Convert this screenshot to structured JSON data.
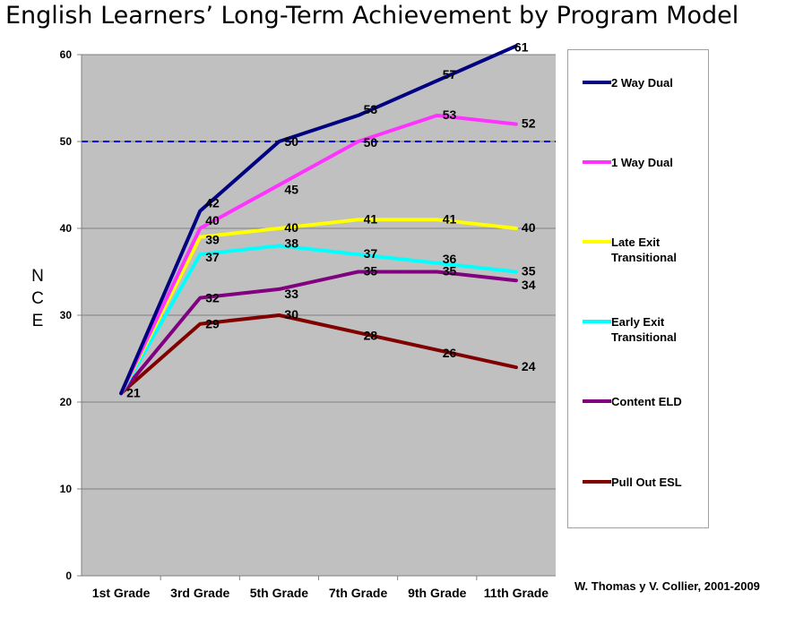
{
  "title": "English Learners’ Long-Term Achievement by Program Model",
  "y_axis_label": [
    "N",
    "C",
    "E"
  ],
  "source": "W. Thomas y V. Collier, 2001-2009",
  "chart_data": {
    "type": "line",
    "title": "English Learners’ Long-Term Achievement by Program Model",
    "ylabel": "NCE",
    "xlabel": "",
    "categories": [
      "1st Grade",
      "3rd Grade",
      "5th Grade",
      "7th Grade",
      "9th Grade",
      "11th Grade"
    ],
    "yticks": [
      0,
      10,
      20,
      30,
      40,
      50,
      60
    ],
    "ylim": [
      0,
      60
    ],
    "grid": true,
    "reference_line": {
      "value": 50,
      "color": "#0000ee",
      "style": "dashed"
    },
    "legend": "right",
    "series": [
      {
        "name": "2 Way Dual",
        "color": "#000080",
        "values": [
          21,
          42,
          50,
          53,
          57,
          61
        ]
      },
      {
        "name": "1 Way Dual",
        "color": "#ff33ff",
        "values": [
          21,
          40,
          45,
          50,
          53,
          52
        ]
      },
      {
        "name": "Late Exit Transitional",
        "color": "#ffff00",
        "values": [
          21,
          39,
          40,
          41,
          41,
          40
        ]
      },
      {
        "name": "Early Exit Transitional",
        "color": "#00ffff",
        "values": [
          21,
          37,
          38,
          37,
          36,
          35
        ]
      },
      {
        "name": "Content ELD",
        "color": "#800080",
        "values": [
          21,
          32,
          33,
          35,
          35,
          34
        ]
      },
      {
        "name": "Pull Out ESL",
        "color": "#800000",
        "values": [
          21,
          29,
          30,
          28,
          26,
          24
        ]
      }
    ],
    "label_offsets": [
      [
        null,
        [
          6,
          -4
        ],
        [
          6,
          5
        ],
        [
          6,
          -2
        ],
        [
          6,
          -2
        ],
        [
          -2,
          6
        ]
      ],
      [
        null,
        [
          6,
          -4
        ],
        [
          6,
          10
        ],
        [
          6,
          6
        ],
        [
          6,
          4
        ],
        [
          6,
          4
        ]
      ],
      [
        null,
        [
          6,
          8
        ],
        [
          6,
          4
        ],
        [
          6,
          4
        ],
        [
          6,
          4
        ],
        [
          6,
          4
        ]
      ],
      [
        null,
        [
          6,
          8
        ],
        [
          6,
          2
        ],
        [
          6,
          4
        ],
        [
          6,
          0
        ],
        [
          6,
          4
        ]
      ],
      [
        null,
        [
          6,
          5
        ],
        [
          6,
          10
        ],
        [
          6,
          4
        ],
        [
          6,
          4
        ],
        [
          6,
          10
        ]
      ],
      [
        [
          6,
          4
        ],
        [
          6,
          5
        ],
        [
          6,
          4
        ],
        [
          6,
          8
        ],
        [
          6,
          8
        ],
        [
          6,
          4
        ]
      ]
    ]
  },
  "legend_items": [
    {
      "label": "2 Way Dual",
      "color": "#000080"
    },
    {
      "label": "1 Way Dual",
      "color": "#ff33ff"
    },
    {
      "label": "Late Exit Transitional",
      "color": "#ffff00"
    },
    {
      "label": "Early Exit Transitional",
      "color": "#00ffff"
    },
    {
      "label": "Content ELD",
      "color": "#800080"
    },
    {
      "label": "Pull Out ESL",
      "color": "#800000"
    }
  ]
}
